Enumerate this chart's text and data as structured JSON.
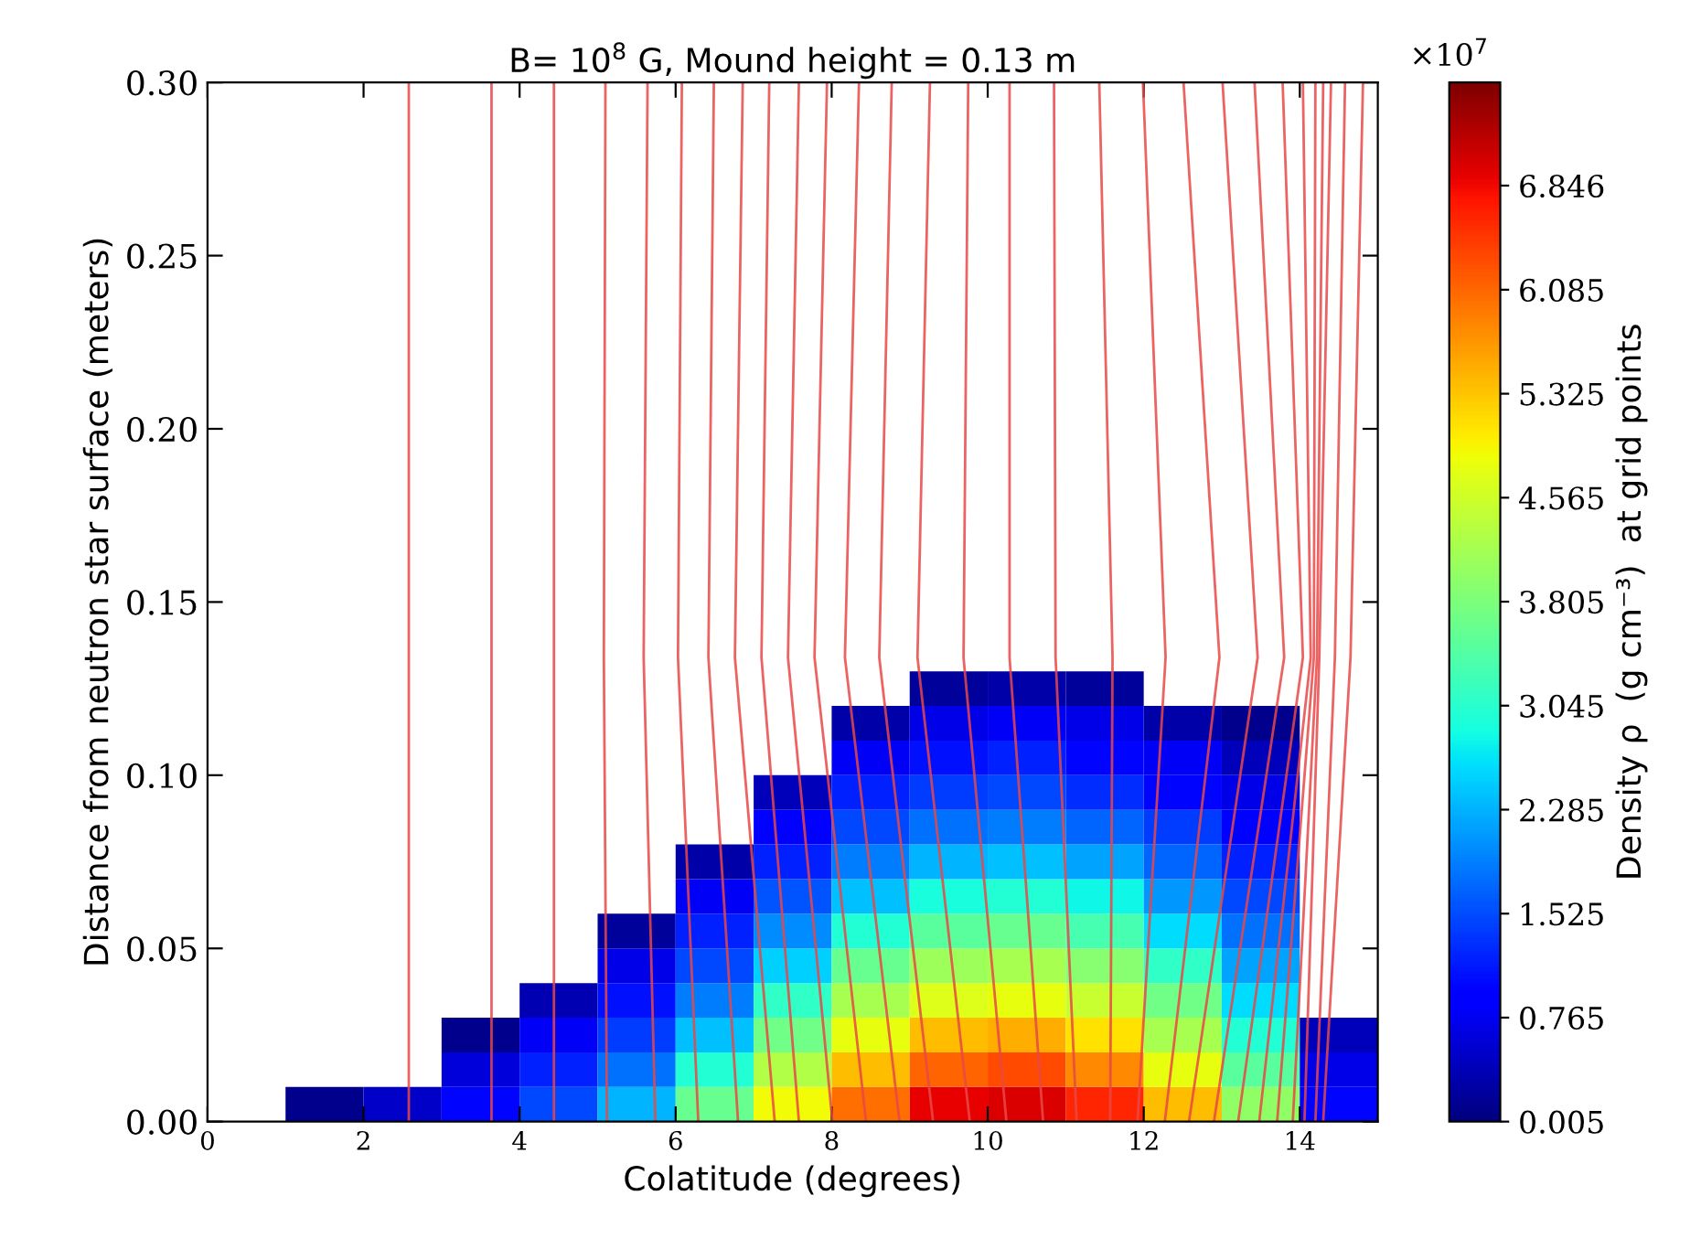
{
  "chart_data": {
    "type": "heatmap",
    "title": "B= 10$^{8}$ G, Mound height = 0.13 m",
    "xlabel": "Colatitude (degrees)",
    "ylabel": "Distance from neutron star surface (meters)",
    "clabel": "Density ρ  (g cm⁻³)  at grid points",
    "annotations": [
      "×10$^{7}$"
    ],
    "xlim": [
      0,
      15
    ],
    "xticks": [
      0,
      2,
      4,
      6,
      8,
      10,
      12,
      14
    ],
    "ylim": [
      0,
      0.3
    ],
    "yticks": [
      {
        "value": 0,
        "label": "0.00"
      },
      {
        "value": 0.05,
        "label": "0.05"
      },
      {
        "value": 0.1,
        "label": "0.10"
      },
      {
        "value": 0.15,
        "label": "0.15"
      },
      {
        "value": 0.2,
        "label": "0.20"
      },
      {
        "value": 0.25,
        "label": "0.25"
      },
      {
        "value": 0.3,
        "label": "0.30"
      }
    ],
    "clim": [
      0.005,
      7.6
    ],
    "cticks": [
      0.005,
      0.765,
      1.525,
      2.285,
      3.045,
      3.805,
      4.565,
      5.325,
      6.085,
      6.846
    ],
    "x": [
      0.5,
      1.5,
      2.5,
      3.5,
      4.5,
      5.5,
      6.5,
      7.5,
      8.5,
      9.5,
      10.5,
      11.5,
      12.5,
      13.5,
      14.5
    ],
    "y": [
      0.125,
      0.115,
      0.105,
      0.095,
      0.085,
      0.075,
      0.065,
      0.055,
      0.045,
      0.035,
      0.025,
      0.015,
      0.005
    ],
    "cells": [
      [
        null,
        null,
        null,
        null,
        null,
        null,
        null,
        null,
        null,
        0.2,
        0.3,
        0.2,
        null,
        null,
        null
      ],
      [
        null,
        null,
        null,
        null,
        null,
        null,
        null,
        null,
        0.3,
        0.7,
        0.8,
        0.7,
        0.3,
        0.1,
        null
      ],
      [
        null,
        null,
        null,
        null,
        null,
        null,
        null,
        null,
        0.8,
        1.1,
        1.2,
        1.0,
        0.8,
        0.4,
        null
      ],
      [
        null,
        null,
        null,
        null,
        null,
        null,
        null,
        0.4,
        1.2,
        1.4,
        1.5,
        1.3,
        1.0,
        0.7,
        null
      ],
      [
        null,
        null,
        null,
        null,
        null,
        null,
        null,
        0.9,
        1.5,
        1.8,
        1.9,
        1.7,
        1.4,
        0.9,
        null
      ],
      [
        null,
        null,
        null,
        null,
        null,
        null,
        0.3,
        1.2,
        1.9,
        2.3,
        2.4,
        2.2,
        1.7,
        1.2,
        null
      ],
      [
        null,
        null,
        null,
        null,
        null,
        null,
        0.8,
        1.6,
        2.4,
        2.9,
        3.0,
        2.8,
        2.1,
        1.5,
        null
      ],
      [
        null,
        null,
        null,
        null,
        null,
        0.2,
        1.2,
        2.0,
        3.0,
        3.5,
        3.6,
        3.3,
        2.6,
        1.8,
        null
      ],
      [
        null,
        null,
        null,
        null,
        null,
        0.7,
        1.5,
        2.5,
        3.6,
        4.1,
        4.2,
        3.9,
        3.1,
        2.2,
        null
      ],
      [
        null,
        null,
        null,
        null,
        0.35,
        1.1,
        1.9,
        3.1,
        4.2,
        4.7,
        4.8,
        4.5,
        3.7,
        2.6,
        null
      ],
      [
        null,
        null,
        null,
        0.1,
        0.8,
        1.4,
        2.4,
        3.7,
        4.8,
        5.4,
        5.5,
        5.1,
        4.2,
        3.0,
        0.4
      ],
      [
        null,
        null,
        null,
        0.6,
        1.2,
        1.8,
        3.0,
        4.3,
        5.4,
        6.1,
        6.3,
        5.8,
        4.8,
        3.5,
        0.7
      ],
      [
        null,
        0.1,
        0.5,
        1.0,
        1.5,
        2.3,
        3.6,
        4.9,
        6.0,
        6.9,
        7.0,
        6.6,
        5.4,
        4.0,
        1.0
      ]
    ],
    "series": [
      {
        "type": "line",
        "color": "#e84848",
        "x": [
          2.58,
          2.58,
          2.58
        ],
        "values": [
          0,
          0.134,
          0.3
        ]
      },
      {
        "type": "line",
        "color": "#e84848",
        "x": [
          3.64,
          3.64,
          3.64
        ],
        "values": [
          0,
          0.134,
          0.3
        ]
      },
      {
        "type": "line",
        "color": "#e84848",
        "x": [
          4.44,
          4.44,
          4.44
        ],
        "values": [
          0,
          0.134,
          0.3
        ]
      },
      {
        "type": "line",
        "color": "#e84848",
        "x": [
          5.12,
          5.08,
          5.1
        ],
        "values": [
          0,
          0.134,
          0.3
        ]
      },
      {
        "type": "line",
        "color": "#e84848",
        "x": [
          5.74,
          5.59,
          5.64
        ],
        "values": [
          0,
          0.134,
          0.3
        ]
      },
      {
        "type": "line",
        "color": "#e84848",
        "x": [
          6.29,
          6.03,
          6.08
        ],
        "values": [
          0,
          0.134,
          0.3
        ]
      },
      {
        "type": "line",
        "color": "#e84848",
        "x": [
          6.8,
          6.42,
          6.49
        ],
        "values": [
          0,
          0.134,
          0.3
        ]
      },
      {
        "type": "line",
        "color": "#e84848",
        "x": [
          7.27,
          6.76,
          6.86
        ],
        "values": [
          0,
          0.134,
          0.3
        ]
      },
      {
        "type": "line",
        "color": "#e84848",
        "x": [
          7.58,
          7.1,
          7.2
        ],
        "values": [
          0,
          0.134,
          0.3
        ]
      },
      {
        "type": "line",
        "color": "#e84848",
        "x": [
          8.01,
          7.44,
          7.58
        ],
        "values": [
          0,
          0.134,
          0.3
        ]
      },
      {
        "type": "line",
        "color": "#e84848",
        "x": [
          8.44,
          7.78,
          7.94
        ],
        "values": [
          0,
          0.134,
          0.3
        ]
      },
      {
        "type": "line",
        "color": "#e84848",
        "x": [
          8.87,
          8.17,
          8.35
        ],
        "values": [
          0,
          0.134,
          0.3
        ]
      },
      {
        "type": "line",
        "color": "#e84848",
        "x": [
          9.3,
          8.61,
          8.77
        ],
        "values": [
          0,
          0.134,
          0.3
        ]
      },
      {
        "type": "line",
        "color": "#e84848",
        "x": [
          9.77,
          9.1,
          9.26
        ],
        "values": [
          0,
          0.134,
          0.3
        ]
      },
      {
        "type": "line",
        "color": "#e84848",
        "x": [
          10.24,
          9.69,
          9.75
        ],
        "values": [
          0,
          0.134,
          0.3
        ]
      },
      {
        "type": "line",
        "color": "#e84848",
        "x": [
          10.71,
          10.28,
          10.28
        ],
        "values": [
          0,
          0.134,
          0.3
        ]
      },
      {
        "type": "line",
        "color": "#e84848",
        "x": [
          11.14,
          10.87,
          10.85
        ],
        "values": [
          0,
          0.134,
          0.3
        ]
      },
      {
        "type": "line",
        "color": "#e84848",
        "x": [
          11.57,
          11.6,
          11.43
        ],
        "values": [
          0,
          0.134,
          0.3
        ]
      },
      {
        "type": "line",
        "color": "#e84848",
        "x": [
          11.92,
          12.28,
          11.99
        ],
        "values": [
          0,
          0.134,
          0.3
        ]
      },
      {
        "type": "line",
        "color": "#e84848",
        "x": [
          12.27,
          12.97,
          12.51
        ],
        "values": [
          0,
          0.134,
          0.3
        ]
      },
      {
        "type": "line",
        "color": "#e84848",
        "x": [
          12.58,
          13.46,
          13.01
        ],
        "values": [
          0,
          0.134,
          0.3
        ]
      },
      {
        "type": "line",
        "color": "#e84848",
        "x": [
          12.9,
          13.8,
          13.42
        ],
        "values": [
          0,
          0.134,
          0.3
        ]
      },
      {
        "type": "line",
        "color": "#e84848",
        "x": [
          13.21,
          14.04,
          13.78
        ],
        "values": [
          0,
          0.134,
          0.3
        ]
      },
      {
        "type": "line",
        "color": "#e84848",
        "x": [
          13.48,
          14.14,
          14.04
        ],
        "values": [
          0,
          0.134,
          0.3
        ]
      },
      {
        "type": "line",
        "color": "#e84848",
        "x": [
          13.71,
          14.18,
          14.2
        ],
        "values": [
          0,
          0.134,
          0.3
        ]
      },
      {
        "type": "line",
        "color": "#e84848",
        "x": [
          13.91,
          14.22,
          14.3
        ],
        "values": [
          0,
          0.134,
          0.3
        ]
      },
      {
        "type": "line",
        "color": "#e84848",
        "x": [
          14.06,
          14.25,
          14.4
        ],
        "values": [
          0,
          0.134,
          0.3
        ]
      },
      {
        "type": "line",
        "color": "#e84848",
        "x": [
          14.2,
          14.45,
          14.58
        ],
        "values": [
          0,
          0.134,
          0.3
        ]
      },
      {
        "type": "line",
        "color": "#e84848",
        "x": [
          14.3,
          14.65,
          14.81
        ],
        "values": [
          0,
          0.134,
          0.3
        ]
      }
    ]
  }
}
